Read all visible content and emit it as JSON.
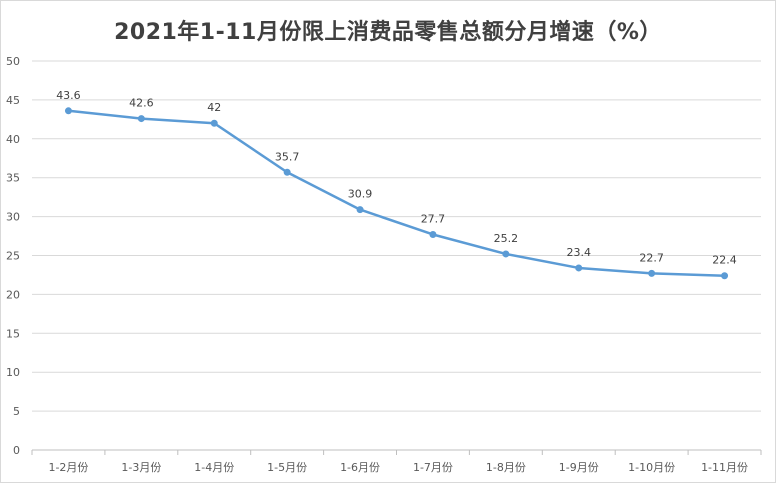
{
  "chart_data": {
    "type": "line",
    "title": "2021年1-11月份限上消费品零售总额分月增速（%）",
    "categories": [
      "1-2月份",
      "1-3月份",
      "1-4月份",
      "1-5月份",
      "1-6月份",
      "1-7月份",
      "1-8月份",
      "1-9月份",
      "1-10月份",
      "1-11月份"
    ],
    "series": [
      {
        "values": [
          43.6,
          42.6,
          42,
          35.7,
          30.9,
          27.7,
          25.2,
          23.4,
          22.7,
          22.4
        ]
      }
    ],
    "data_labels": [
      "43.6",
      "42.6",
      "42",
      "35.7",
      "30.9",
      "27.7",
      "25.2",
      "23.4",
      "22.7",
      "22.4"
    ],
    "y_ticks": [
      "0",
      "5",
      "10",
      "15",
      "20",
      "25",
      "30",
      "35",
      "40",
      "45",
      "50"
    ],
    "ylim": [
      0,
      50
    ],
    "grid": true,
    "legend": "none",
    "colors": {
      "line": "#5b9bd5",
      "grid": "#d9d9d9",
      "axis": "#bfbfbf"
    }
  }
}
